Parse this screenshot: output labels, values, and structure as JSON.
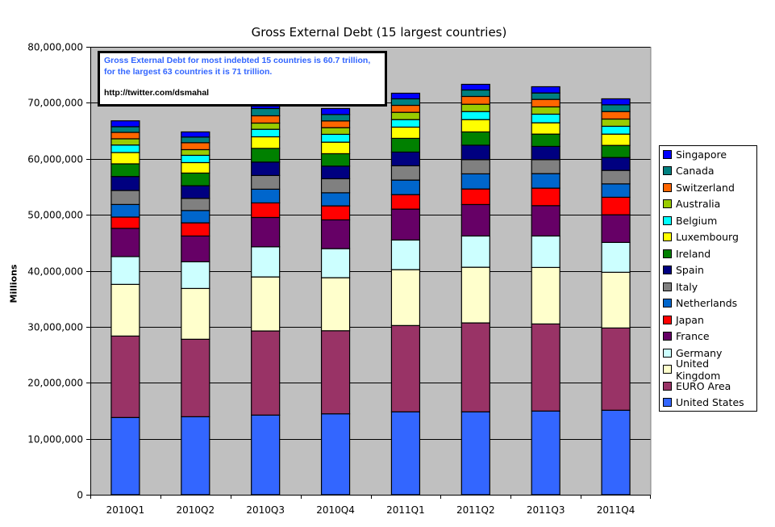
{
  "chart_data": {
    "type": "bar",
    "stacked": true,
    "title": "Gross External Debt (15 largest countries)",
    "xlabel": "",
    "ylabel": "Millions",
    "ylim": [
      0,
      80000000
    ],
    "yticks": [
      0,
      10000000,
      20000000,
      30000000,
      40000000,
      50000000,
      60000000,
      70000000,
      80000000
    ],
    "ytick_labels": [
      "0",
      "10,000,000",
      "20,000,000",
      "30,000,000",
      "40,000,000",
      "50,000,000",
      "60,000,000",
      "70,000,000",
      "80,000,000"
    ],
    "grid": true,
    "legend_position": "right",
    "categories": [
      "2010Q1",
      "2010Q2",
      "2010Q3",
      "2010Q4",
      "2011Q1",
      "2011Q2",
      "2011Q3",
      "2011Q4"
    ],
    "series": [
      {
        "name": "United States",
        "color": "#3366ff",
        "values": [
          13790000,
          13930000,
          14220000,
          14450000,
          14800000,
          14800000,
          14940000,
          15090000
        ]
      },
      {
        "name": "EURO Area",
        "color": "#993366",
        "values": [
          14550000,
          13840000,
          15030000,
          14840000,
          15420000,
          15890000,
          15560000,
          14690000
        ]
      },
      {
        "name": "United Kingdom",
        "color": "#ffffcc",
        "values": [
          9230000,
          9070000,
          9650000,
          9470000,
          9980000,
          9940000,
          10090000,
          9950000
        ]
      },
      {
        "name": "Germany",
        "color": "#ccffff",
        "values": [
          4960000,
          4760000,
          5380000,
          5190000,
          5290000,
          5580000,
          5620000,
          5330000
        ]
      },
      {
        "name": "France",
        "color": "#660066",
        "values": [
          5040000,
          4610000,
          5240000,
          5140000,
          5520000,
          5620000,
          5420000,
          4940000
        ]
      },
      {
        "name": "Japan",
        "color": "#ff0000",
        "values": [
          2020000,
          2350000,
          2600000,
          2500000,
          2590000,
          2780000,
          3130000,
          3130000
        ]
      },
      {
        "name": "Netherlands",
        "color": "#0066cc",
        "values": [
          2250000,
          2200000,
          2450000,
          2340000,
          2600000,
          2700000,
          2590000,
          2390000
        ]
      },
      {
        "name": "Italy",
        "color": "#808080",
        "values": [
          2500000,
          2170000,
          2450000,
          2510000,
          2550000,
          2530000,
          2490000,
          2410000
        ]
      },
      {
        "name": "Spain",
        "color": "#000080",
        "values": [
          2500000,
          2260000,
          2390000,
          2250000,
          2450000,
          2590000,
          2370000,
          2300000
        ]
      },
      {
        "name": "Ireland",
        "color": "#008000",
        "values": [
          2260000,
          2260000,
          2450000,
          2220000,
          2450000,
          2370000,
          2200000,
          2160000
        ]
      },
      {
        "name": "Luxembourg",
        "color": "#ffff00",
        "values": [
          2020000,
          1870000,
          2070000,
          2060000,
          2010000,
          2200000,
          2020000,
          2020000
        ]
      },
      {
        "name": "Belgium",
        "color": "#00ffff",
        "values": [
          1340000,
          1300000,
          1340000,
          1400000,
          1340000,
          1440000,
          1540000,
          1400000
        ]
      },
      {
        "name": "Australia",
        "color": "#99cc00",
        "values": [
          1110000,
          1010000,
          1110000,
          1190000,
          1300000,
          1300000,
          1300000,
          1290000
        ]
      },
      {
        "name": "Switzerland",
        "color": "#ff6600",
        "values": [
          1150000,
          1240000,
          1300000,
          1200000,
          1250000,
          1400000,
          1340000,
          1340000
        ]
      },
      {
        "name": "Canada",
        "color": "#008080",
        "values": [
          1010000,
          1010000,
          1300000,
          1150000,
          1160000,
          1150000,
          1150000,
          1200000
        ]
      },
      {
        "name": "Singapore",
        "color": "#0000ff",
        "values": [
          1050000,
          920000,
          920000,
          1070000,
          1000000,
          1010000,
          1110000,
          1070000
        ]
      }
    ],
    "annotation": {
      "line1": "Gross External Debt for most indebted 15 countries is 60.7 trillion, for the largest 63 countries it is 71 trillion.",
      "line2": "http://twitter.com/dsmahal"
    }
  },
  "legend_items": [
    "Singapore",
    "Canada",
    "Switzerland",
    "Australia",
    "Belgium",
    "Luxembourg",
    "Ireland",
    "Spain",
    "Italy",
    "Netherlands",
    "Japan",
    "France",
    "Germany",
    "United Kingdom",
    "EURO Area",
    "United States"
  ],
  "colors": {
    "plot_background": "#c0c0c0",
    "annotation_text": "#3366ff"
  }
}
